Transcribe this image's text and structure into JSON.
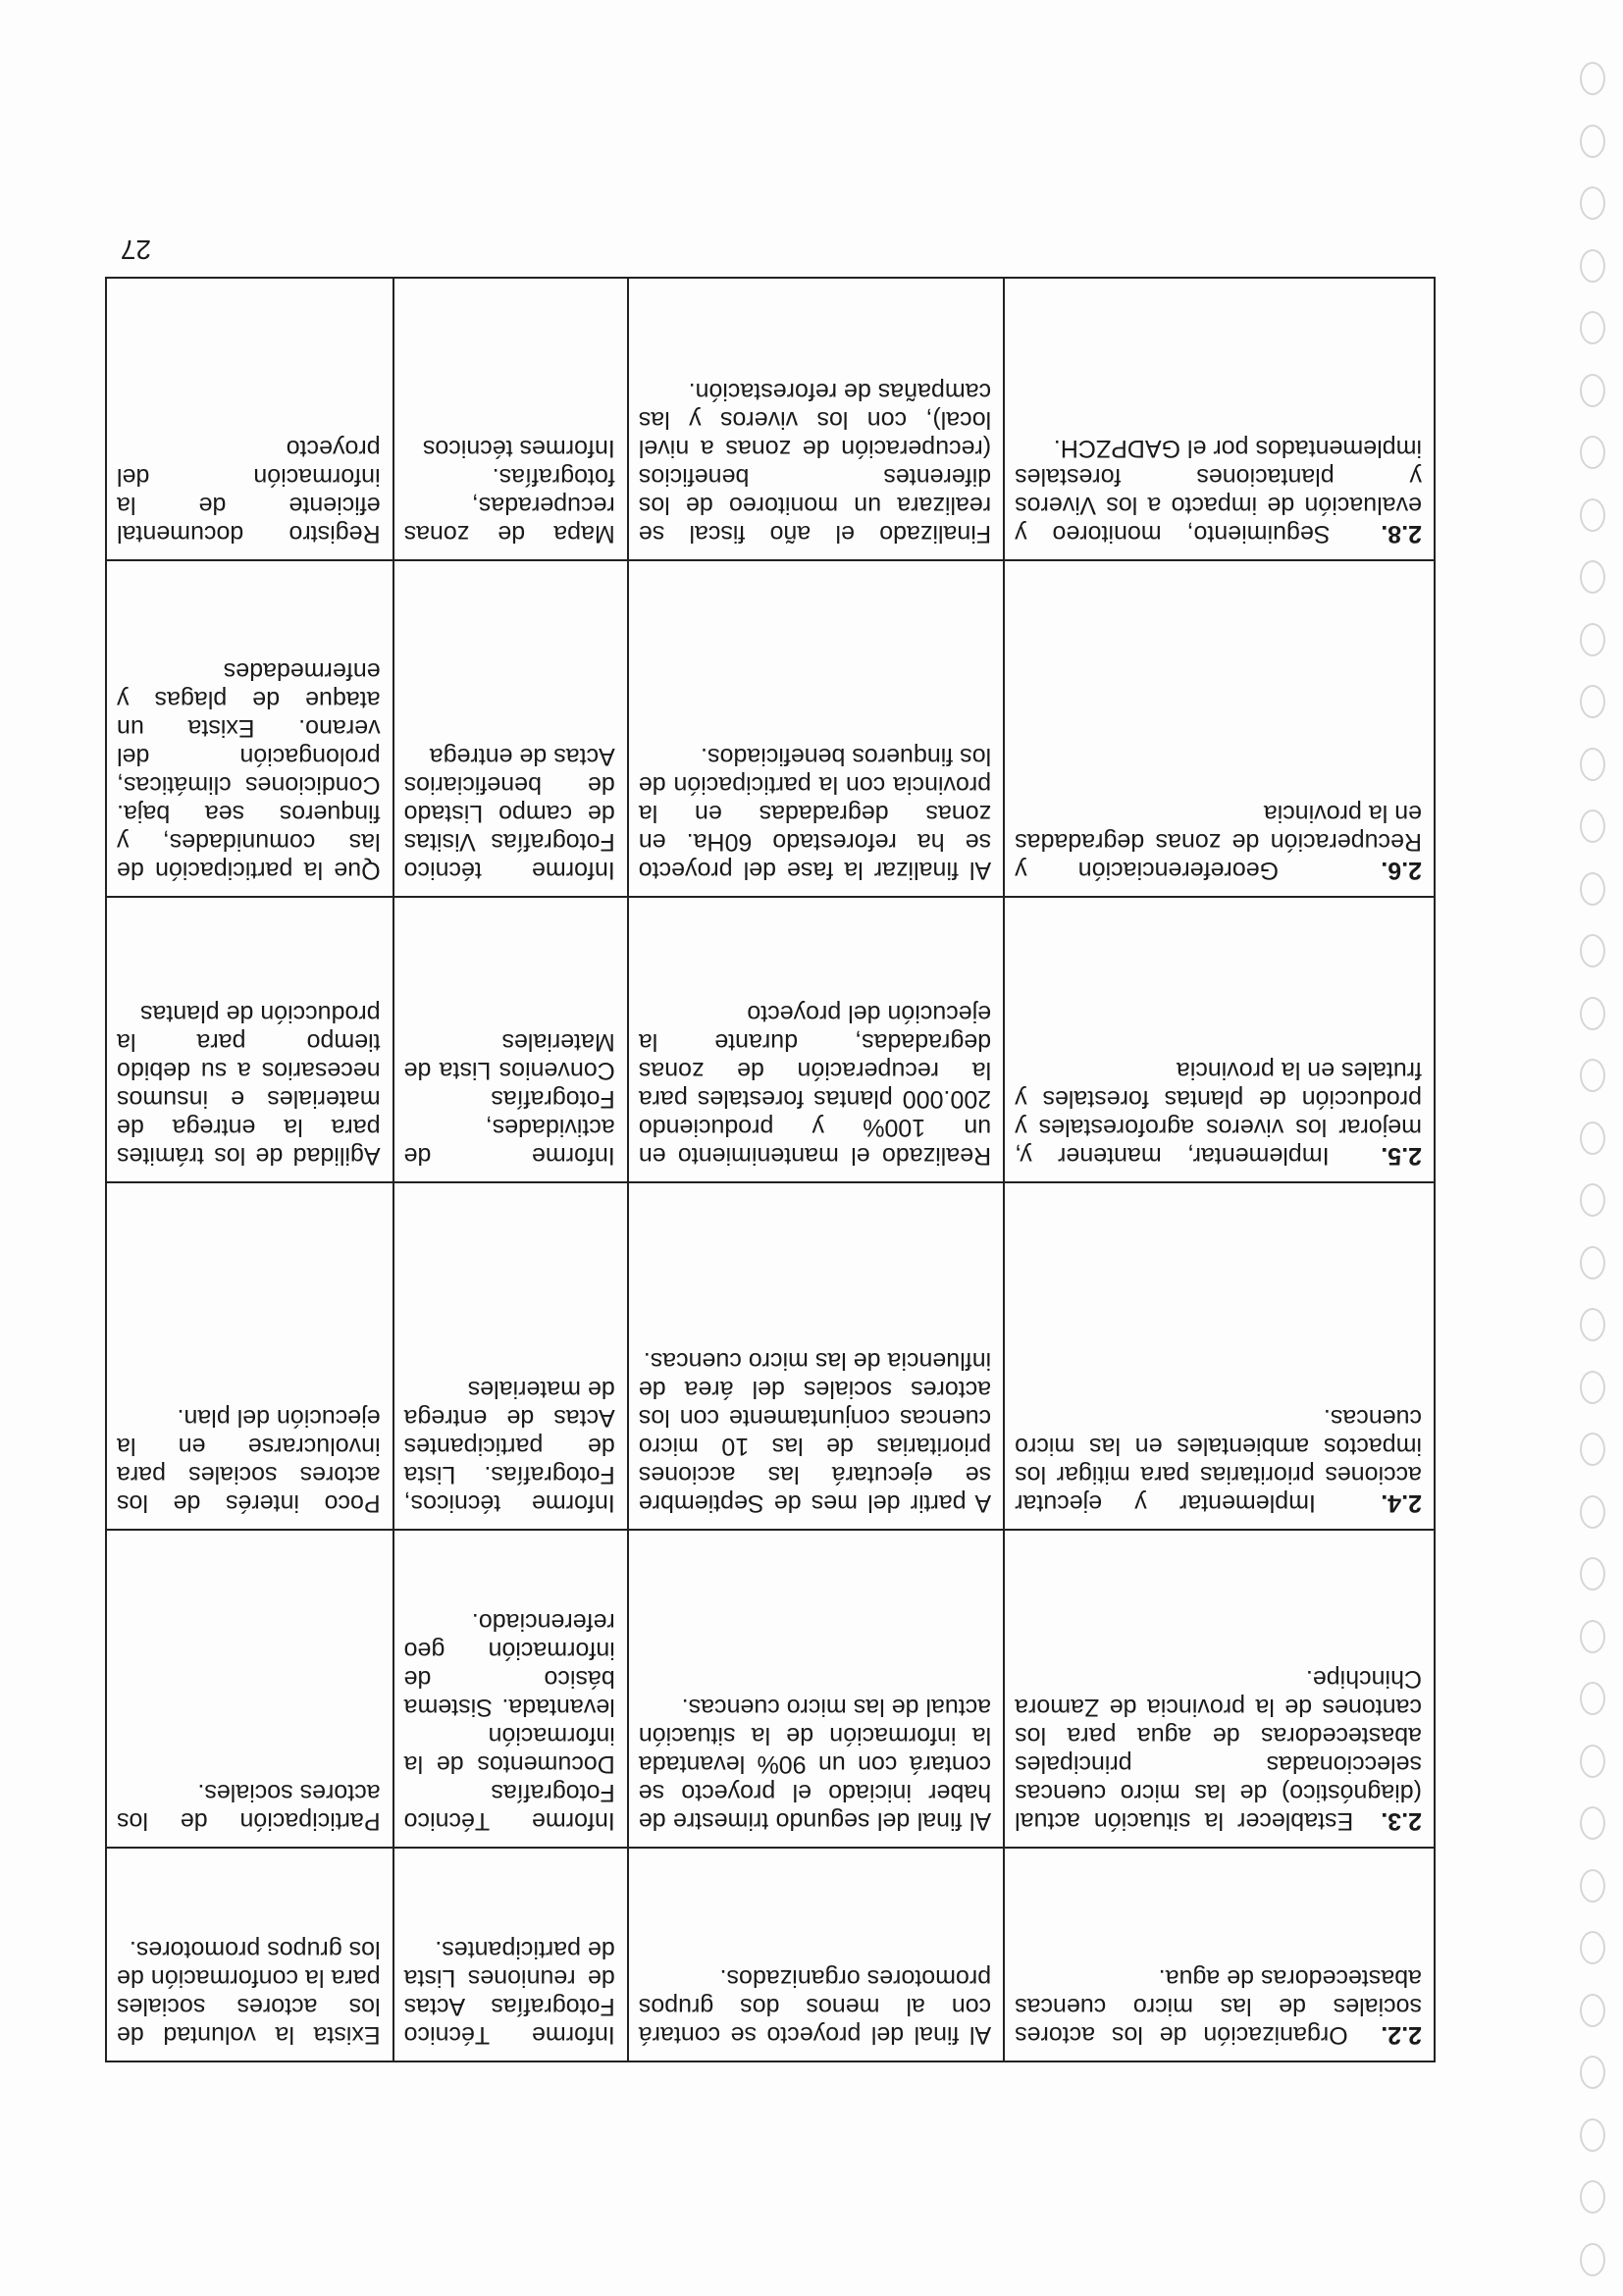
{
  "page_number": "27",
  "rows": [
    {
      "num": "2.2.",
      "objective": "Organización de los actores sociales de las micro cuencas abastecedoras de agua.",
      "indicator": "Al final del proyecto se contará con al menos dos grupos promotores organizados.",
      "verification": "Informe Técnico Fotografías Actas de reuniones Lista de participantes.",
      "assumption": "Exista la voluntad de los actores sociales para la conformación de los grupos promotores."
    },
    {
      "num": "2.3.",
      "objective": "Establecer la situación actual (diagnóstico) de las micro cuencas seleccionadas principales abastecedoras de agua para los cantones de la provincia de Zamora Chinchipe.",
      "indicator": "Al final del segundo trimestre de haber iniciado el proyecto se contará con un 90% levantada la información de la situación actual de las micro cuencas.",
      "verification": "Informe Técnico Fotografías Documentos de la información levantada. Sistema básico de información geo referenciado.",
      "assumption": "Participación de los actores sociales."
    },
    {
      "num": "2.4.",
      "objective": "Implementar y ejecutar acciones prioritarias para mitigar los impactos ambientales en las micro cuencas.",
      "indicator": "A partir del mes de Septiembre se ejecutará las acciones prioritarias de las 10 micro cuencas conjuntamente con los actores sociales del área de influencia de las micro cuencas.",
      "verification": "Informe técnicos, Fotografías. Lista de participantes Actas de entrega de materiales",
      "assumption": "Poco interés de los actores sociales para involucrarse en la ejecución del plan."
    },
    {
      "num": "2.5.",
      "objective": "Implementar, mantener y, mejorar los viveros agroforestales y producción de plantas forestales y frutales en la provincia",
      "indicator": "Realizado el mantenimiento en un 100% y produciendo 200.000 plantas forestales para la recuperación de zonas degradadas, durante la ejecución del proyecto",
      "verification": "Informe de actividades, Fotografías Convenios Lista de Materiales",
      "assumption": "Agilidad de los trámites para la entrega de materiales e insumos necesarios a su debido tiempo para la producción de plantas"
    },
    {
      "num": "2.6.",
      "objective": "Georeferenciación y Recuperación de zonas degradadas en la provincia",
      "indicator": "Al finalizar la fase del proyecto se ha reforestado 60Ha. en zonas degradadas en la provincia con la participación de los finqueros beneficiados.",
      "verification": "Informe técnico Fotografías Visitas de campo Listado de beneficiarios Actas de entrega",
      "assumption": "Que la participación de las comunidades, y finqueros sea baja. Condiciones climáticas, prolongación del verano. Exista un ataque de plagas y enfermedades"
    },
    {
      "num": "2.8.",
      "objective": "Seguimiento, monitoreo y evaluación de impacto a los Viveros y plantaciones forestales implementados por el GADPZCH.",
      "indicator": "Finalizado el año fiscal se realizara un monitoreo de los diferentes beneficios (recuperación de zonas a nivel local), con los viveros y las campañas de reforestación.",
      "verification": "Mapa de zonas recuperadas, fotografías. Informes técnicos",
      "assumption": "Registro documental eficiente de la información del proyecto"
    }
  ]
}
